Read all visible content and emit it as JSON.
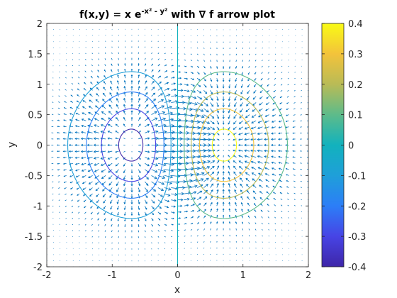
{
  "chart_data": {
    "type": "contour",
    "title": {
      "prefix": "f(x,y) = x e",
      "superscript": "-x² - y²",
      "suffix": " with ∇ f arrow plot"
    },
    "xlabel": "x",
    "ylabel": "y",
    "xlim": [
      -2,
      2
    ],
    "ylim": [
      -2,
      2
    ],
    "xticks": [
      -2,
      -1,
      0,
      1,
      2
    ],
    "yticks": [
      -2,
      -1.5,
      -1,
      -0.5,
      0,
      0.5,
      1,
      1.5,
      2
    ],
    "xtick_labels": [
      "-2",
      "-1",
      "0",
      "1",
      "2"
    ],
    "ytick_labels": [
      "-2",
      "-1.5",
      "-1",
      "-0.5",
      "0",
      "0.5",
      "1",
      "1.5",
      "2"
    ],
    "contour_levels": [
      -0.4,
      -0.3,
      -0.2,
      -0.1,
      0,
      0.1,
      0.2,
      0.3,
      0.4
    ],
    "function": "x*exp(-x^2-y^2)",
    "grid": false,
    "quiver": {
      "field": "gradient",
      "spacing": 0.1,
      "color": "#0072BD"
    },
    "colorbar": {
      "colormap": "parula",
      "clim": [
        -0.4,
        0.4
      ],
      "ticks": [
        0.4,
        0.3,
        0.2,
        0.1,
        0,
        -0.1,
        -0.2,
        -0.3,
        -0.4
      ],
      "tick_labels": [
        "0.4",
        "0.3",
        "0.2",
        "0.1",
        "0",
        "-0.1",
        "-0.2",
        "-0.3",
        "-0.4"
      ],
      "placement": "right"
    }
  }
}
